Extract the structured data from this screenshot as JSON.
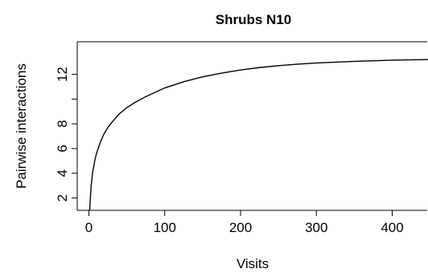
{
  "chart_data": {
    "type": "line",
    "title": "Shrubs N10",
    "xlabel": "Visits",
    "ylabel": "Pairwise interactions",
    "xlim": [
      0,
      450
    ],
    "ylim": [
      1,
      13.4
    ],
    "x_ticks": [
      0,
      100,
      200,
      300,
      400
    ],
    "y_ticks": [
      2,
      4,
      6,
      8,
      12
    ],
    "grid": false,
    "series": [
      {
        "x": [
          1,
          2,
          3,
          5,
          8,
          10,
          15,
          20,
          25,
          30,
          40,
          50,
          60,
          75,
          100,
          125,
          150,
          175,
          200,
          225,
          250,
          275,
          300,
          350,
          400,
          450
        ],
        "y": [
          1,
          2.1,
          3.0,
          4.1,
          5.1,
          5.6,
          6.5,
          7.2,
          7.7,
          8.1,
          8.8,
          9.3,
          9.7,
          10.2,
          10.9,
          11.4,
          11.8,
          12.1,
          12.35,
          12.55,
          12.7,
          12.82,
          12.92,
          13.05,
          13.15,
          13.2
        ]
      }
    ]
  }
}
